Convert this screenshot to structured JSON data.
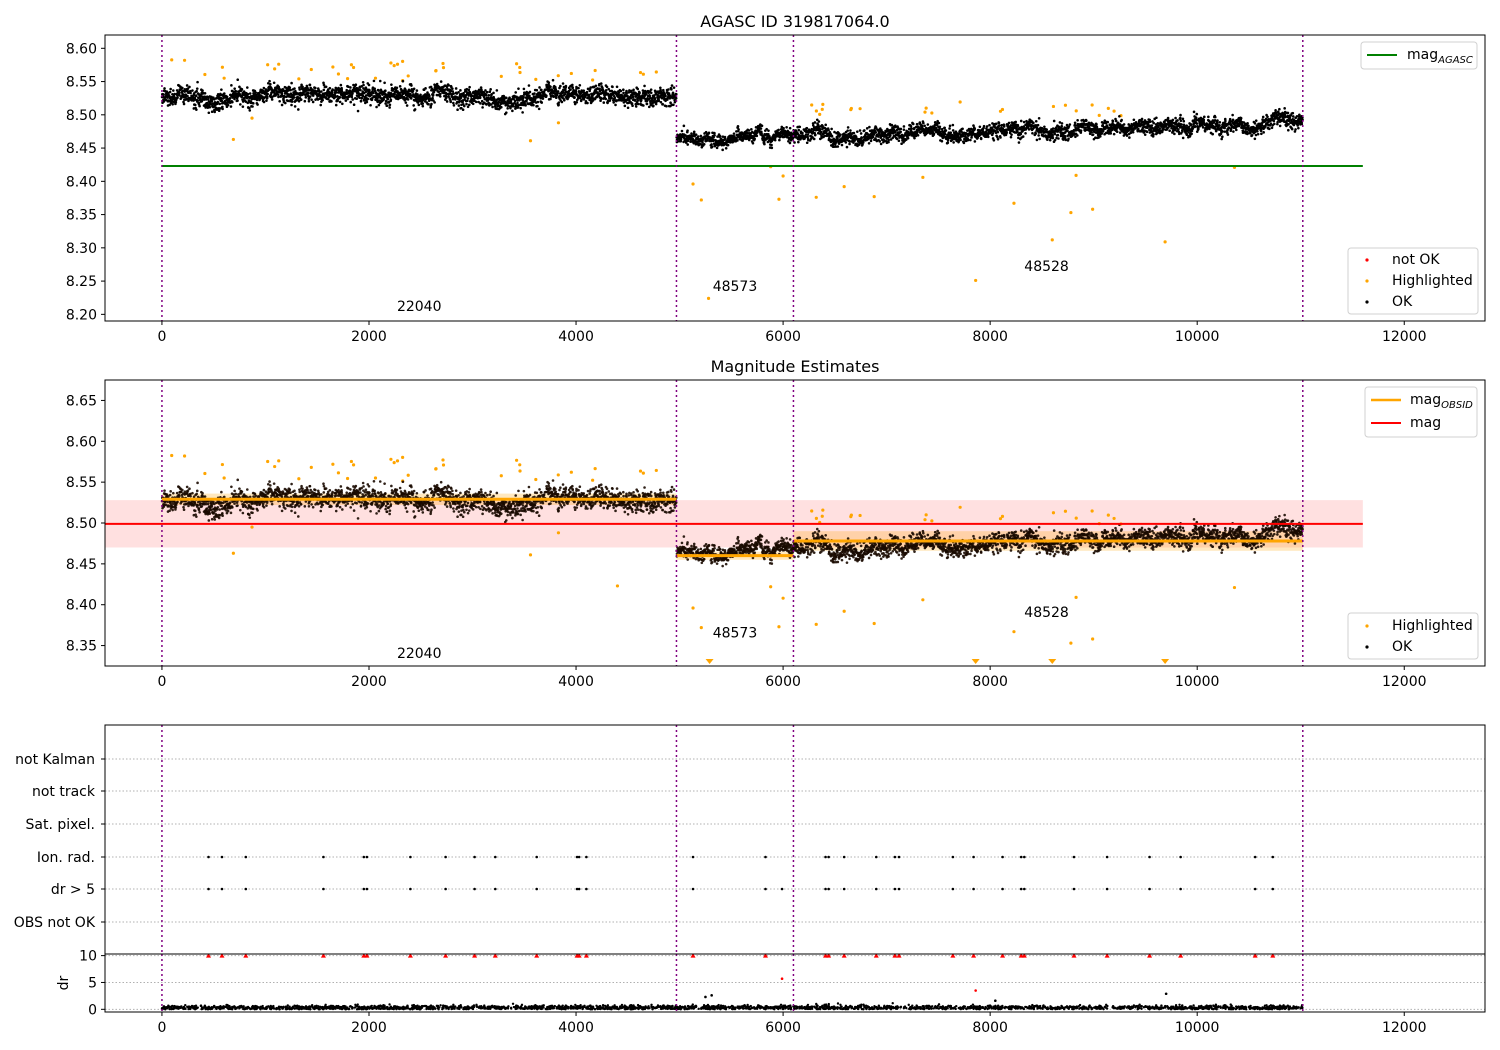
{
  "chart_data": [
    {
      "type": "scatter",
      "title": "AGASC ID 319817064.0",
      "xlim": [
        -550,
        12780
      ],
      "ylim": [
        8.19,
        8.62
      ],
      "xticks": [
        0,
        2000,
        4000,
        6000,
        8000,
        10000,
        12000
      ],
      "yticks": [
        8.2,
        8.25,
        8.3,
        8.35,
        8.4,
        8.45,
        8.5,
        8.55,
        8.6
      ],
      "ytick_labels": [
        "8.20",
        "8.25",
        "8.30",
        "8.35",
        "8.40",
        "8.45",
        "8.50",
        "8.55",
        "8.60"
      ],
      "obs_boundaries": [
        0,
        4970,
        6100,
        11020
      ],
      "segments": [
        {
          "obsid": "22040",
          "x_start": 0,
          "x_end": 4970,
          "mean": 8.528,
          "spread": 0.012,
          "label_x": 2270,
          "label_y": 8.205
        },
        {
          "obsid": "48573",
          "x_start": 4970,
          "x_end": 6100,
          "mean": 8.463,
          "spread": 0.008,
          "label_x": 5320,
          "label_y": 8.235
        },
        {
          "obsid": "48528",
          "x_start": 6100,
          "x_end": 11020,
          "mean": 8.478,
          "spread": 0.01,
          "label_x": 8330,
          "label_y": 8.265
        }
      ],
      "mag_agasc": 8.423,
      "mag_agasc_xrange": [
        0,
        11600
      ],
      "series": [
        {
          "name": "not OK",
          "color": "#ff0000"
        },
        {
          "name": "Highlighted",
          "color": "#ffa500"
        },
        {
          "name": "OK",
          "color": "#000000"
        }
      ],
      "line_legend": [
        {
          "label": "mag",
          "subscript": "AGASC",
          "color": "#008000"
        }
      ],
      "outliers": [
        [
          690,
          8.463
        ],
        [
          870,
          8.495
        ],
        [
          3560,
          8.461
        ],
        [
          3830,
          8.488
        ],
        [
          5130,
          8.396
        ],
        [
          5210,
          8.372
        ],
        [
          5280,
          8.224
        ],
        [
          5880,
          8.422
        ],
        [
          5960,
          8.373
        ],
        [
          6000,
          8.408
        ],
        [
          6320,
          8.376
        ],
        [
          6590,
          8.392
        ],
        [
          6880,
          8.377
        ],
        [
          7350,
          8.406
        ],
        [
          7860,
          8.251
        ],
        [
          8230,
          8.367
        ],
        [
          8600,
          8.312
        ],
        [
          8780,
          8.353
        ],
        [
          8830,
          8.409
        ],
        [
          8990,
          8.358
        ],
        [
          9690,
          8.309
        ],
        [
          10360,
          8.421
        ]
      ]
    },
    {
      "type": "scatter",
      "title": "Magnitude Estimates",
      "xlim": [
        -550,
        12780
      ],
      "ylim": [
        8.325,
        8.675
      ],
      "xticks": [
        0,
        2000,
        4000,
        6000,
        8000,
        10000,
        12000
      ],
      "yticks": [
        8.35,
        8.4,
        8.45,
        8.5,
        8.55,
        8.6,
        8.65
      ],
      "ytick_labels": [
        "8.35",
        "8.40",
        "8.45",
        "8.50",
        "8.55",
        "8.60",
        "8.65"
      ],
      "mag": 8.499,
      "mag_band": [
        8.47,
        8.528
      ],
      "mag_xrange": [
        -550,
        11600
      ],
      "mag_obsid": [
        {
          "x_start": 0,
          "x_end": 4970,
          "value": 8.529,
          "lo": 8.522,
          "hi": 8.536
        },
        {
          "x_start": 4970,
          "x_end": 6100,
          "value": 8.46,
          "lo": 8.455,
          "hi": 8.465
        },
        {
          "x_start": 6100,
          "x_end": 11020,
          "value": 8.478,
          "lo": 8.466,
          "hi": 8.49
        }
      ],
      "annotations": [
        {
          "text": "22040",
          "x": 2270,
          "y": 8.335
        },
        {
          "text": "48573",
          "x": 5320,
          "y": 8.36
        },
        {
          "text": "48528",
          "x": 8330,
          "y": 8.385
        }
      ],
      "clipped_markers": [
        5290,
        7860,
        8600,
        9690
      ],
      "series": [
        {
          "name": "Highlighted",
          "color": "#ffa500"
        },
        {
          "name": "OK",
          "color": "#000000"
        }
      ],
      "line_legend": [
        {
          "label": "mag",
          "subscript": "OBSID",
          "color": "#ffa500"
        },
        {
          "label": "mag",
          "subscript": "",
          "color": "#ff0000"
        }
      ],
      "outliers": [
        [
          690,
          8.463
        ],
        [
          870,
          8.495
        ],
        [
          3560,
          8.461
        ],
        [
          3830,
          8.488
        ],
        [
          4400,
          8.423
        ],
        [
          5130,
          8.396
        ],
        [
          5210,
          8.372
        ],
        [
          5880,
          8.422
        ],
        [
          5960,
          8.373
        ],
        [
          6000,
          8.408
        ],
        [
          6320,
          8.376
        ],
        [
          6590,
          8.392
        ],
        [
          6880,
          8.377
        ],
        [
          7350,
          8.406
        ],
        [
          8230,
          8.367
        ],
        [
          8780,
          8.353
        ],
        [
          8830,
          8.409
        ],
        [
          8990,
          8.358
        ],
        [
          10360,
          8.421
        ]
      ]
    },
    {
      "type": "scatter",
      "xlim": [
        -550,
        12780
      ],
      "flag_labels": [
        "not Kalman",
        "not track",
        "Sat. pixel.",
        "Ion. rad.",
        "dr > 5",
        "OBS not OK"
      ],
      "flag_times": [
        450,
        580,
        810,
        1560,
        1950,
        1980,
        2400,
        2740,
        3020,
        3220,
        3620,
        4010,
        4030,
        4100,
        5130,
        5830,
        6410,
        6440,
        6590,
        6900,
        7080,
        7120,
        7640,
        7840,
        8120,
        8300,
        8330,
        8810,
        9130,
        9540,
        9840,
        10560,
        10730
      ],
      "dr_only_times": [
        5990
      ]
    },
    {
      "type": "scatter",
      "ylabel": "dr",
      "xlim": [
        -550,
        12780
      ],
      "ylim": [
        -0.5,
        10.3
      ],
      "xticks": [
        0,
        2000,
        4000,
        6000,
        8000,
        10000,
        12000
      ],
      "yticks": [
        0,
        5,
        10
      ],
      "ytick_labels": [
        "0",
        "5",
        "10"
      ],
      "clip_value": 10,
      "baseline_mean": 0.3,
      "scattered_points": [
        [
          5250,
          2.3
        ],
        [
          5310,
          2.6
        ],
        [
          5990,
          5.7
        ],
        [
          7860,
          3.5
        ],
        [
          8050,
          1.6
        ],
        [
          9700,
          2.9
        ]
      ]
    }
  ]
}
